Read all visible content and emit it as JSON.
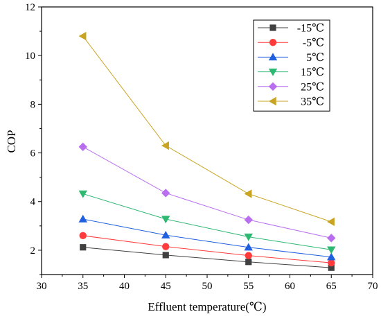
{
  "chart_data": {
    "type": "line",
    "xlabel": "Effluent temperature(℃)",
    "ylabel": "COP",
    "xlim": [
      30,
      70
    ],
    "ylim": [
      1,
      12
    ],
    "xticks": [
      30,
      35,
      40,
      45,
      50,
      55,
      60,
      65,
      70
    ],
    "yticks": [
      2,
      4,
      6,
      8,
      10,
      12
    ],
    "grid": false,
    "legend_position": "top-right",
    "x": [
      35,
      45,
      55,
      65
    ],
    "series": [
      {
        "name": "-15℃",
        "color": "#404040",
        "marker": "square",
        "values": [
          2.12,
          1.8,
          1.52,
          1.28
        ]
      },
      {
        "name": "-5℃",
        "color": "#ff3b3b",
        "marker": "circle",
        "values": [
          2.6,
          2.15,
          1.78,
          1.48
        ]
      },
      {
        "name": "5℃",
        "color": "#1f5fe0",
        "marker": "triangle-up",
        "values": [
          3.28,
          2.62,
          2.12,
          1.72
        ]
      },
      {
        "name": "15℃",
        "color": "#2eb872",
        "marker": "triangle-down",
        "values": [
          4.32,
          3.28,
          2.55,
          2.02
        ]
      },
      {
        "name": "25℃",
        "color": "#b96ef0",
        "marker": "diamond",
        "values": [
          6.25,
          4.35,
          3.25,
          2.5
        ]
      },
      {
        "name": "35℃",
        "color": "#c9a422",
        "marker": "triangle-left",
        "values": [
          10.8,
          6.3,
          4.32,
          3.17
        ]
      }
    ]
  }
}
